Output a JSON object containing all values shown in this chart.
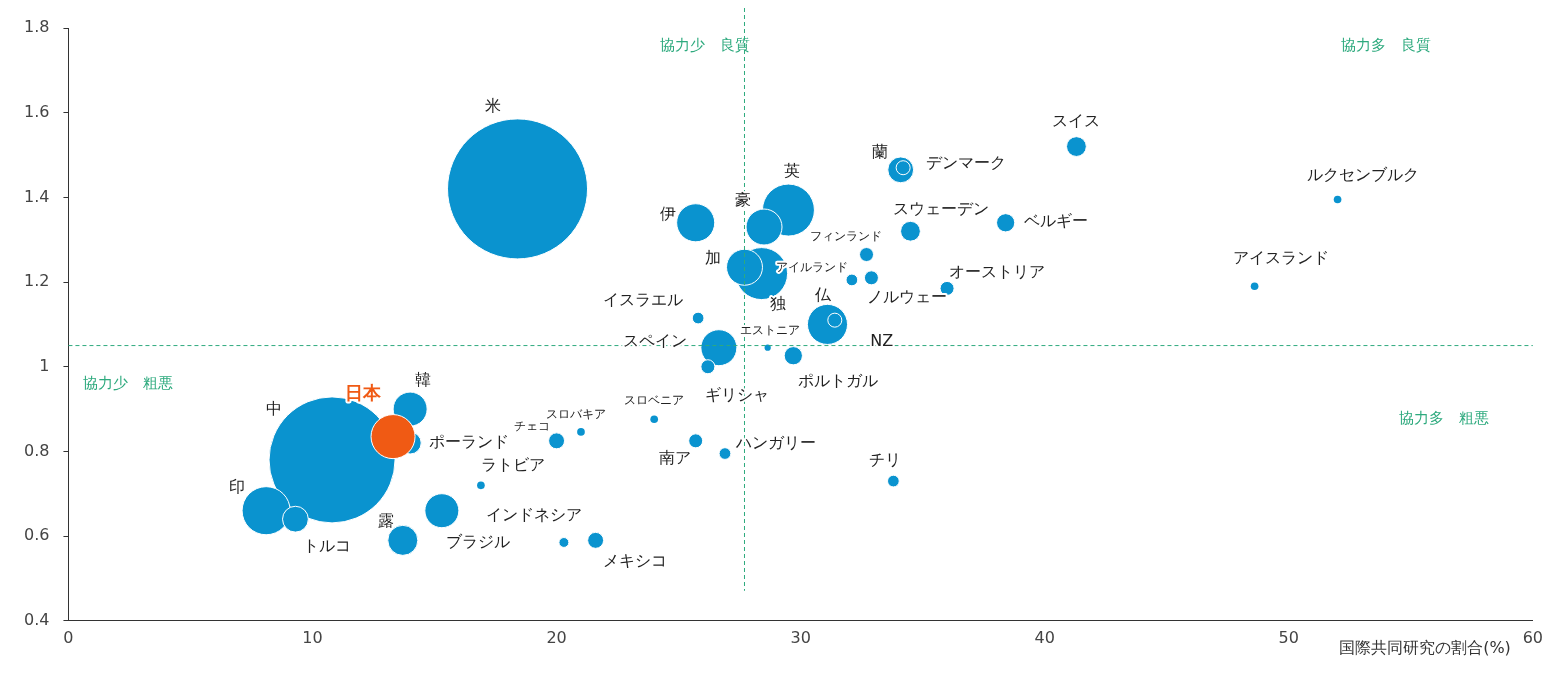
{
  "chart_data": {
    "type": "bubble",
    "xlabel": "国際共同研究の割合(%)",
    "xlim": [
      0,
      60
    ],
    "xticks": [
      0,
      10,
      20,
      30,
      40,
      50,
      60
    ],
    "ylim": [
      0.4,
      1.8
    ],
    "yticks": [
      0.4,
      0.6,
      0.8,
      1,
      1.2,
      1.4,
      1.6,
      1.8
    ],
    "grid": false,
    "legend": false,
    "ref_lines": [
      {
        "axis": "x",
        "value": 27.7,
        "color": "#2eaa7e",
        "line_style": "dashed"
      },
      {
        "axis": "y",
        "value": 1.05,
        "color": "#2eaa7e",
        "line_style": "dashed"
      }
    ],
    "annotations": [
      "協力少　良質",
      "協力多　良質",
      "協力少　粗悪",
      "協力多　粗悪"
    ],
    "series": [
      {
        "color": "#0a93cf",
        "x": [
          18.4,
          10.8,
          14.0,
          14.0,
          8.1,
          9.3,
          13.7,
          15.3,
          16.9,
          20.0,
          21.0,
          24.0,
          26.65,
          26.2,
          29.7,
          28.65,
          31.1,
          31.4,
          25.7,
          26.9,
          33.8,
          20.3,
          21.6,
          25.7,
          29.5,
          28.5,
          28.4,
          27.7,
          34.1,
          34.2,
          34.5,
          38.4,
          41.3,
          32.7,
          32.1,
          32.9,
          36.0,
          25.8,
          52.0,
          48.6
        ],
        "values": [
          1.42,
          0.78,
          0.9,
          0.82,
          0.66,
          0.64,
          0.59,
          0.66,
          0.72,
          0.825,
          0.846,
          0.876,
          1.045,
          1.0,
          1.026,
          1.045,
          1.1,
          1.11,
          0.825,
          0.795,
          0.73,
          0.585,
          0.59,
          1.34,
          1.37,
          1.33,
          1.22,
          1.235,
          1.465,
          1.47,
          1.32,
          1.34,
          1.52,
          1.265,
          1.205,
          1.21,
          1.185,
          1.115,
          1.395,
          1.19
        ],
        "sizes": [
          1,
          0.81,
          0.059,
          0.025,
          0.118,
          0.034,
          0.046,
          0.059,
          0.003,
          0.013,
          0.003,
          0.003,
          0.066,
          0.01,
          0.017,
          0.002,
          0.082,
          0.01,
          0.01,
          0.007,
          0.007,
          0.005,
          0.013,
          0.074,
          0.138,
          0.066,
          0.138,
          0.066,
          0.034,
          0.01,
          0.02,
          0.017,
          0.02,
          0.01,
          0.007,
          0.01,
          0.01,
          0.007,
          0.003,
          0.003
        ],
        "value_labels": [
          "米",
          "中",
          "韓",
          "ポーランド",
          "印",
          "トルコ",
          "露",
          "ブラジル",
          "ラトビア",
          "チェコ",
          "スロバキア",
          "スロベニア",
          "スペイン",
          "ギリシャ",
          "ポルトガル",
          "エストニア",
          "仏",
          "NZ",
          "南ア",
          "ハンガリー",
          "チリ",
          "インドネシア",
          "メキシコ",
          "伊",
          "英",
          "豪",
          "独",
          "加",
          "蘭",
          "デンマーク",
          "スウェーデン",
          "ベルギー",
          "スイス",
          "フィンランド",
          "アイルランド",
          "ノルウェー",
          "オーストリア",
          "イスラエル",
          "ルクセンブルク",
          "アイスランド"
        ]
      },
      {
        "color": "#f05a14",
        "x": [
          13.3
        ],
        "values": [
          0.835
        ],
        "sizes": [
          0.099
        ],
        "value_labels": [
          "日本"
        ]
      }
    ]
  }
}
